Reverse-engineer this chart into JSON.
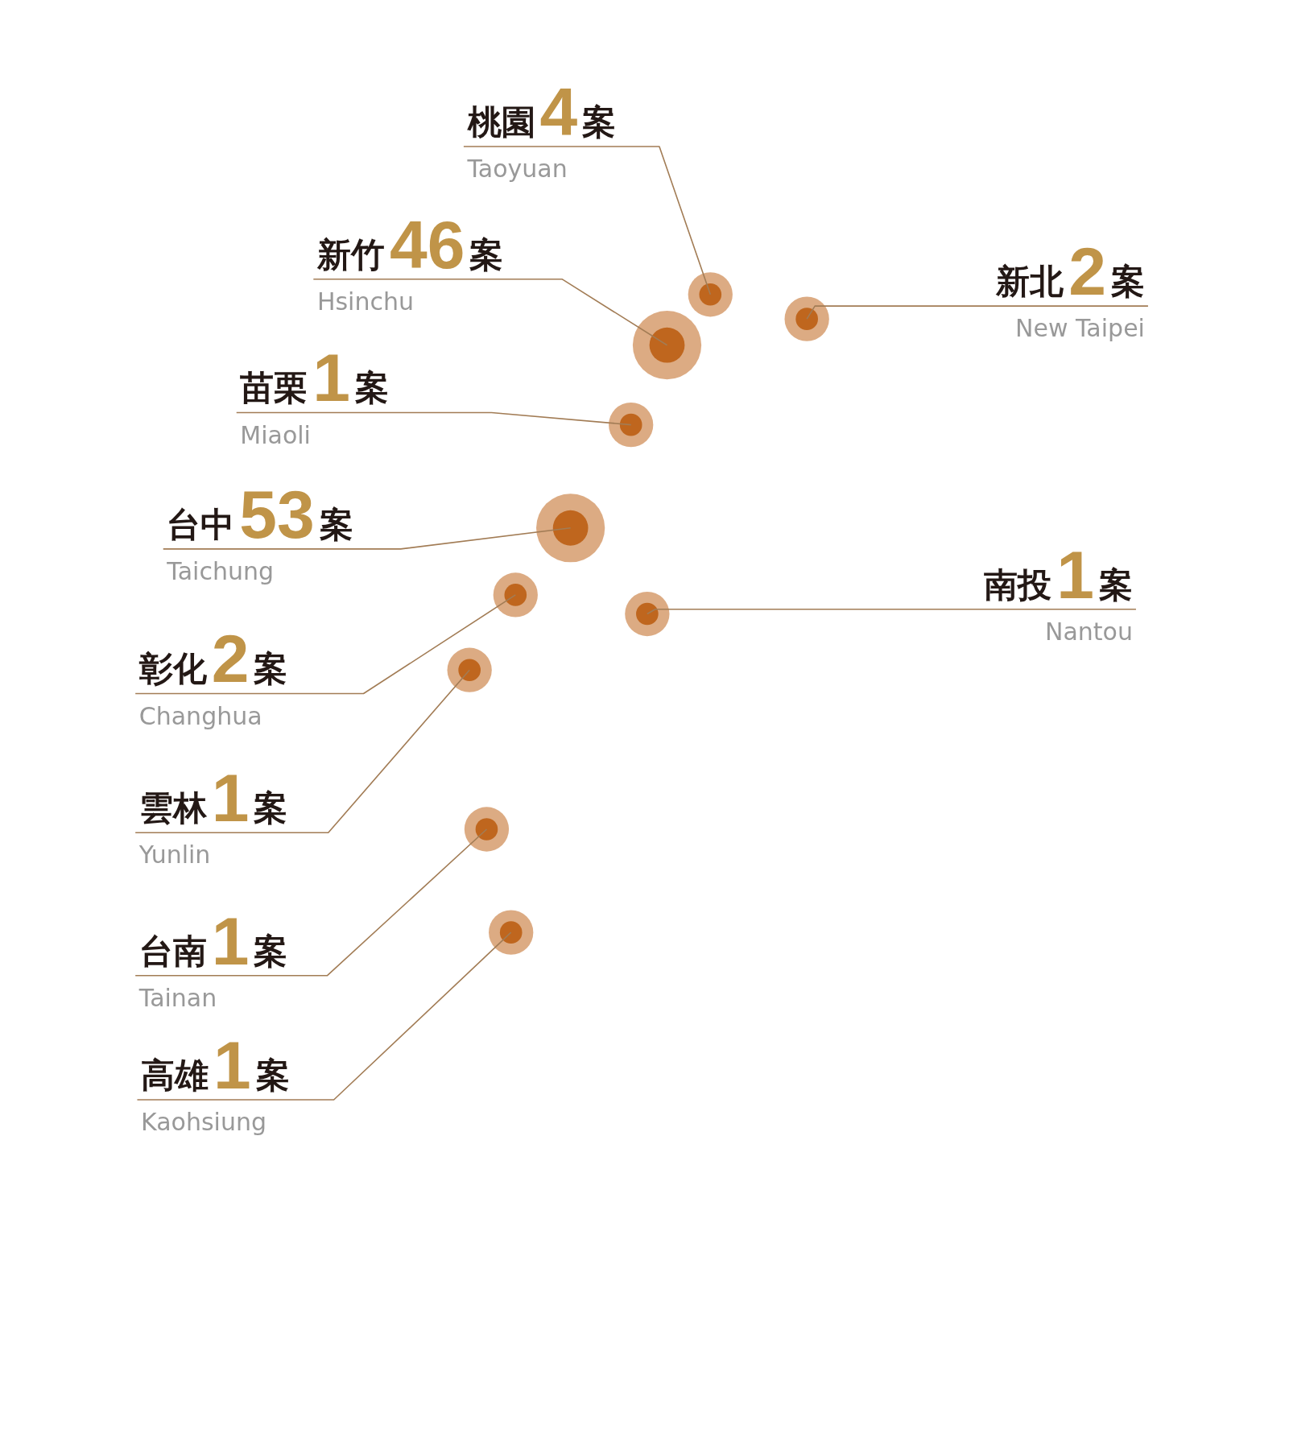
{
  "chart_data": {
    "type": "other",
    "categories": [
      "桃園",
      "新竹",
      "新北",
      "苗栗",
      "台中",
      "南投",
      "彰化",
      "雲林",
      "台南",
      "高雄"
    ],
    "values": [
      4,
      46,
      2,
      1,
      53,
      1,
      2,
      1,
      1,
      1
    ],
    "value_labels": [
      "4案",
      "46案",
      "2案",
      "1案",
      "53案",
      "1案",
      "2案",
      "1案",
      "1案",
      "1案"
    ],
    "annotations": [
      "Taoyuan",
      "Hsinchu",
      "New Taipei",
      "Miaoli",
      "Taichung",
      "Nantou",
      "Changhua",
      "Yunlin",
      "Tainan",
      "Kaohsiung"
    ],
    "color": "#bf661e"
  }
}
